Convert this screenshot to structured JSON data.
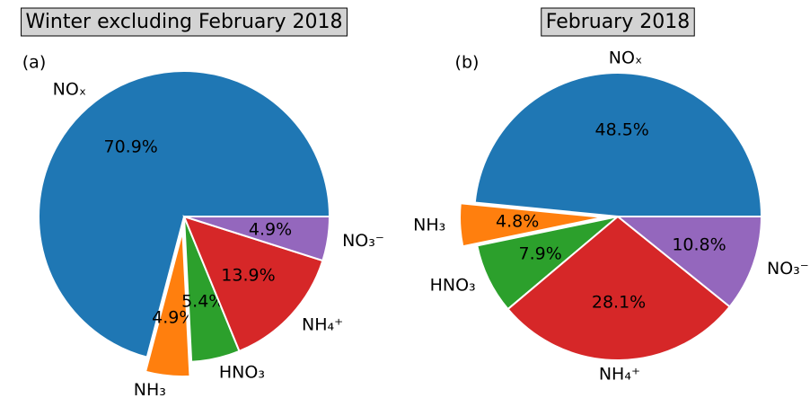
{
  "chart_data": [
    {
      "type": "pie",
      "title": "Winter excluding February 2018",
      "panel_label": "(a)",
      "categories": [
        "NOₓ",
        "NH₃",
        "HNO₃",
        "NH₄⁺",
        "NO₃⁻"
      ],
      "values": [
        70.9,
        4.9,
        5.4,
        13.9,
        4.9
      ],
      "value_labels": [
        "70.9%",
        "4.9%",
        "5.4%",
        "13.9%",
        "4.9%"
      ],
      "colors": [
        "#1f77b4",
        "#ff7f0e",
        "#2ca02c",
        "#d62728",
        "#9467bd"
      ],
      "explode": [
        0,
        0.1,
        0,
        0,
        0
      ]
    },
    {
      "type": "pie",
      "title": "February 2018",
      "panel_label": "(b)",
      "categories": [
        "NOₓ",
        "NH₃",
        "HNO₃",
        "NH₄⁺",
        "NO₃⁻"
      ],
      "values": [
        48.5,
        4.8,
        7.9,
        28.1,
        10.8
      ],
      "value_labels": [
        "48.5%",
        "4.8%",
        "7.9%",
        "28.1%",
        "10.8%"
      ],
      "colors": [
        "#1f77b4",
        "#ff7f0e",
        "#2ca02c",
        "#d62728",
        "#9467bd"
      ],
      "explode": [
        0,
        0.1,
        0,
        0,
        0
      ]
    }
  ]
}
